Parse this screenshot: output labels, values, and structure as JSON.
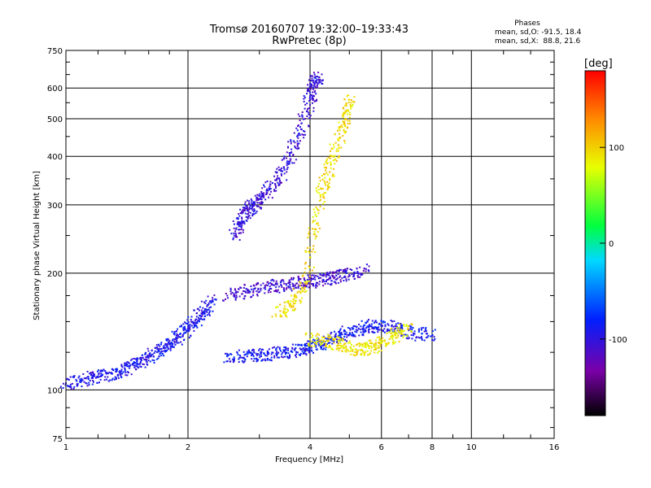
{
  "chart_data": {
    "type": "scatter",
    "title": "Tromsø 20160707 19:32:00–19:33:43",
    "subtitle": "RwPretec (8p)",
    "xlabel": "Frequency [MHz]",
    "ylabel": "Stationary phase Virtual Height [km]",
    "x_scale": "log",
    "y_scale": "log",
    "xlim": [
      1,
      16
    ],
    "ylim": [
      75,
      750
    ],
    "x_ticks": [
      "1",
      "2",
      "4",
      "6",
      "8",
      "10",
      "16"
    ],
    "y_ticks": [
      "75",
      "100",
      "200",
      "300",
      "400",
      "500",
      "600",
      "750"
    ],
    "x_tick_values": [
      1,
      2,
      4,
      6,
      8,
      10,
      16
    ],
    "y_tick_values": [
      75,
      100,
      200,
      300,
      400,
      500,
      600,
      750
    ],
    "x_grid_values": [
      2,
      4,
      6,
      8,
      10
    ],
    "y_grid_values": [
      100,
      200,
      300,
      400,
      500,
      600
    ],
    "grid": true,
    "stats": {
      "heading": "Phases",
      "o_line": "mean, sd,O: -91.5, 18.4",
      "x_line": "mean, sd,X:  88.8, 21.6"
    },
    "colorbar": {
      "label": "[deg]",
      "range": [
        -180,
        180
      ],
      "ticks": [
        "100",
        "0",
        "-100"
      ],
      "tick_values": [
        100,
        0,
        -100
      ],
      "colormap": "rainbow (black-purple-blue-cyan-green-yellow-red)"
    },
    "series": [
      {
        "description_key": "O-mode low trace",
        "phase_deg": -95,
        "x": [
          1.0,
          1.1,
          1.2,
          1.3,
          1.4,
          1.5,
          1.6,
          1.7,
          1.8,
          1.9,
          2.0,
          2.1,
          2.2,
          2.3
        ],
        "y": [
          104,
          106,
          108,
          110,
          113,
          117,
          121,
          126,
          131,
          137,
          144,
          152,
          160,
          170
        ]
      },
      {
        "description_key": "O-mode E-F cusp trace",
        "phase_deg": -90,
        "x": [
          2.5,
          2.8,
          3.0,
          3.3,
          3.6,
          3.9,
          4.2,
          4.5,
          4.8,
          5.2,
          5.6,
          6.0,
          6.6,
          7.2,
          8.0
        ],
        "y": [
          122,
          122,
          123,
          124,
          126,
          128,
          131,
          135,
          139,
          143,
          146,
          146,
          144,
          140,
          138
        ]
      },
      {
        "description_key": "O-mode F-layer column",
        "phase_deg": -105,
        "x": [
          2.6,
          2.7,
          2.8,
          2.9,
          3.0,
          3.2,
          3.4,
          3.6,
          3.8,
          4.0,
          4.1,
          4.2
        ],
        "y": [
          250,
          270,
          290,
          300,
          310,
          330,
          360,
          410,
          470,
          560,
          620,
          640
        ]
      },
      {
        "description_key": "O-mode multi-hop bands",
        "phase_deg": -110,
        "x": [
          2.5,
          2.8,
          3.1,
          3.4,
          3.7,
          4.0,
          4.3,
          4.6,
          5.0,
          5.5
        ],
        "y": [
          175,
          180,
          184,
          186,
          188,
          190,
          192,
          195,
          198,
          205
        ]
      },
      {
        "description_key": "X-mode F-layer trace",
        "phase_deg": 95,
        "x": [
          3.3,
          3.6,
          3.9,
          4.1,
          4.3,
          4.5,
          4.7,
          4.9,
          5.0
        ],
        "y": [
          155,
          165,
          190,
          260,
          330,
          380,
          440,
          500,
          560
        ]
      },
      {
        "description_key": "X-mode lower trace",
        "phase_deg": 90,
        "x": [
          4.0,
          4.4,
          4.8,
          5.2,
          5.6,
          6.0,
          6.5,
          7.0
        ],
        "y": [
          135,
          134,
          130,
          127,
          128,
          132,
          138,
          146
        ]
      }
    ]
  }
}
